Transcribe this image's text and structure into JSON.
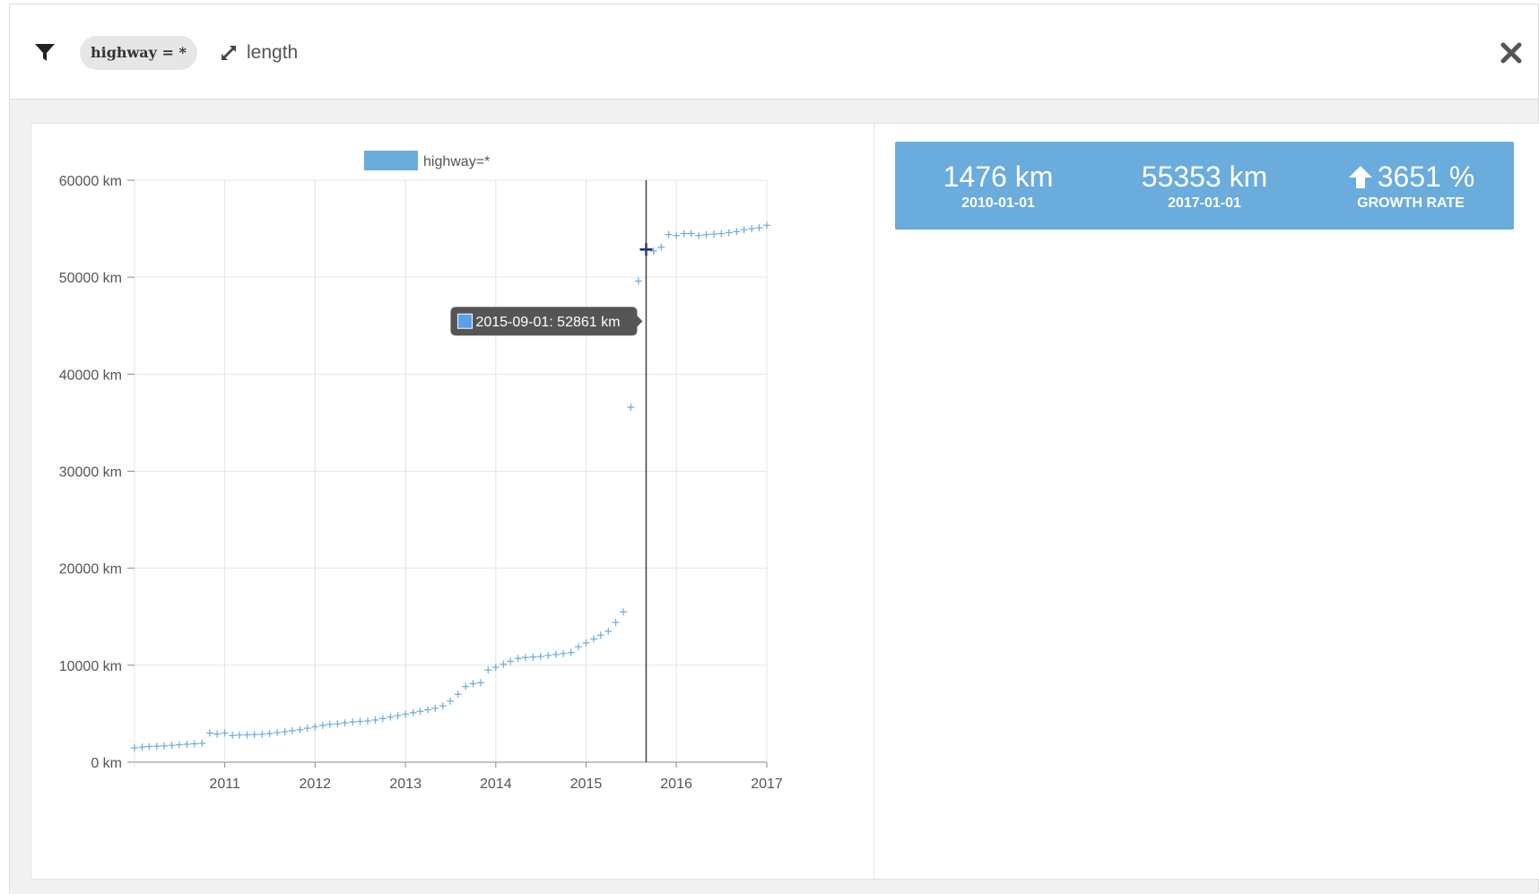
{
  "toolbar": {
    "filter_tag": "highway = *",
    "measure_label": "length"
  },
  "stats": {
    "start_value": "1476 km",
    "start_label": "2010-01-01",
    "end_value": "55353 km",
    "end_label": "2017-01-01",
    "growth_value": "3651 %",
    "growth_label": "GROWTH RATE"
  },
  "tooltip": {
    "text": "2015-09-01: 52861 km",
    "date": "2015-09-01"
  },
  "colors": {
    "series": "#6aacdc",
    "stats_bg": "#6aacdc",
    "tooltip_bg": "#555555",
    "cursor_line": "#444444"
  },
  "chart_data": {
    "type": "scatter",
    "legend": "highway=*",
    "legend_position": "top-center",
    "grid": true,
    "x_ticks": [
      "2011",
      "2012",
      "2013",
      "2014",
      "2015",
      "2016",
      "2017"
    ],
    "y_ticks": [
      "0 km",
      "10000 km",
      "20000 km",
      "30000 km",
      "40000 km",
      "50000 km",
      "60000 km"
    ],
    "ylim": [
      0,
      60000
    ],
    "xlim": [
      "2010-01-01",
      "2017-01-01"
    ],
    "series": [
      {
        "name": "highway=*",
        "points": [
          [
            "2010-01-01",
            1476
          ],
          [
            "2010-02-01",
            1550
          ],
          [
            "2010-03-01",
            1620
          ],
          [
            "2010-04-01",
            1650
          ],
          [
            "2010-05-01",
            1680
          ],
          [
            "2010-06-01",
            1740
          ],
          [
            "2010-07-01",
            1800
          ],
          [
            "2010-08-01",
            1850
          ],
          [
            "2010-09-01",
            1900
          ],
          [
            "2010-10-01",
            1950
          ],
          [
            "2010-11-01",
            3000
          ],
          [
            "2010-12-01",
            2900
          ],
          [
            "2011-01-01",
            3000
          ],
          [
            "2011-02-01",
            2750
          ],
          [
            "2011-03-01",
            2800
          ],
          [
            "2011-04-01",
            2820
          ],
          [
            "2011-05-01",
            2850
          ],
          [
            "2011-06-01",
            2880
          ],
          [
            "2011-07-01",
            2950
          ],
          [
            "2011-08-01",
            3050
          ],
          [
            "2011-09-01",
            3150
          ],
          [
            "2011-10-01",
            3250
          ],
          [
            "2011-11-01",
            3350
          ],
          [
            "2011-12-01",
            3500
          ],
          [
            "2012-01-01",
            3650
          ],
          [
            "2012-02-01",
            3800
          ],
          [
            "2012-03-01",
            3900
          ],
          [
            "2012-04-01",
            3950
          ],
          [
            "2012-05-01",
            4050
          ],
          [
            "2012-06-01",
            4150
          ],
          [
            "2012-07-01",
            4200
          ],
          [
            "2012-08-01",
            4250
          ],
          [
            "2012-09-01",
            4350
          ],
          [
            "2012-10-01",
            4500
          ],
          [
            "2012-11-01",
            4650
          ],
          [
            "2012-12-01",
            4800
          ],
          [
            "2013-01-01",
            4950
          ],
          [
            "2013-02-01",
            5100
          ],
          [
            "2013-03-01",
            5250
          ],
          [
            "2013-04-01",
            5400
          ],
          [
            "2013-05-01",
            5550
          ],
          [
            "2013-06-01",
            5800
          ],
          [
            "2013-07-01",
            6300
          ],
          [
            "2013-08-01",
            7000
          ],
          [
            "2013-09-01",
            7800
          ],
          [
            "2013-10-01",
            8100
          ],
          [
            "2013-11-01",
            8200
          ],
          [
            "2013-12-01",
            9500
          ],
          [
            "2014-01-01",
            9800
          ],
          [
            "2014-02-01",
            10100
          ],
          [
            "2014-03-01",
            10400
          ],
          [
            "2014-04-01",
            10700
          ],
          [
            "2014-05-01",
            10800
          ],
          [
            "2014-06-01",
            10850
          ],
          [
            "2014-07-01",
            10900
          ],
          [
            "2014-08-01",
            11000
          ],
          [
            "2014-09-01",
            11100
          ],
          [
            "2014-10-01",
            11200
          ],
          [
            "2014-11-01",
            11300
          ],
          [
            "2014-12-01",
            11900
          ],
          [
            "2015-01-01",
            12300
          ],
          [
            "2015-02-01",
            12700
          ],
          [
            "2015-03-01",
            13100
          ],
          [
            "2015-04-01",
            13500
          ],
          [
            "2015-05-01",
            14400
          ],
          [
            "2015-06-01",
            15500
          ],
          [
            "2015-07-01",
            36600
          ],
          [
            "2015-08-01",
            49600
          ],
          [
            "2015-09-01",
            52861
          ],
          [
            "2015-10-01",
            52700
          ],
          [
            "2015-11-01",
            53100
          ],
          [
            "2015-12-01",
            54400
          ],
          [
            "2016-01-01",
            54300
          ],
          [
            "2016-02-01",
            54500
          ],
          [
            "2016-03-01",
            54500
          ],
          [
            "2016-04-01",
            54300
          ],
          [
            "2016-05-01",
            54400
          ],
          [
            "2016-06-01",
            54450
          ],
          [
            "2016-07-01",
            54500
          ],
          [
            "2016-08-01",
            54600
          ],
          [
            "2016-09-01",
            54700
          ],
          [
            "2016-10-01",
            54900
          ],
          [
            "2016-11-01",
            55000
          ],
          [
            "2016-12-01",
            55100
          ],
          [
            "2017-01-01",
            55353
          ]
        ]
      }
    ]
  }
}
